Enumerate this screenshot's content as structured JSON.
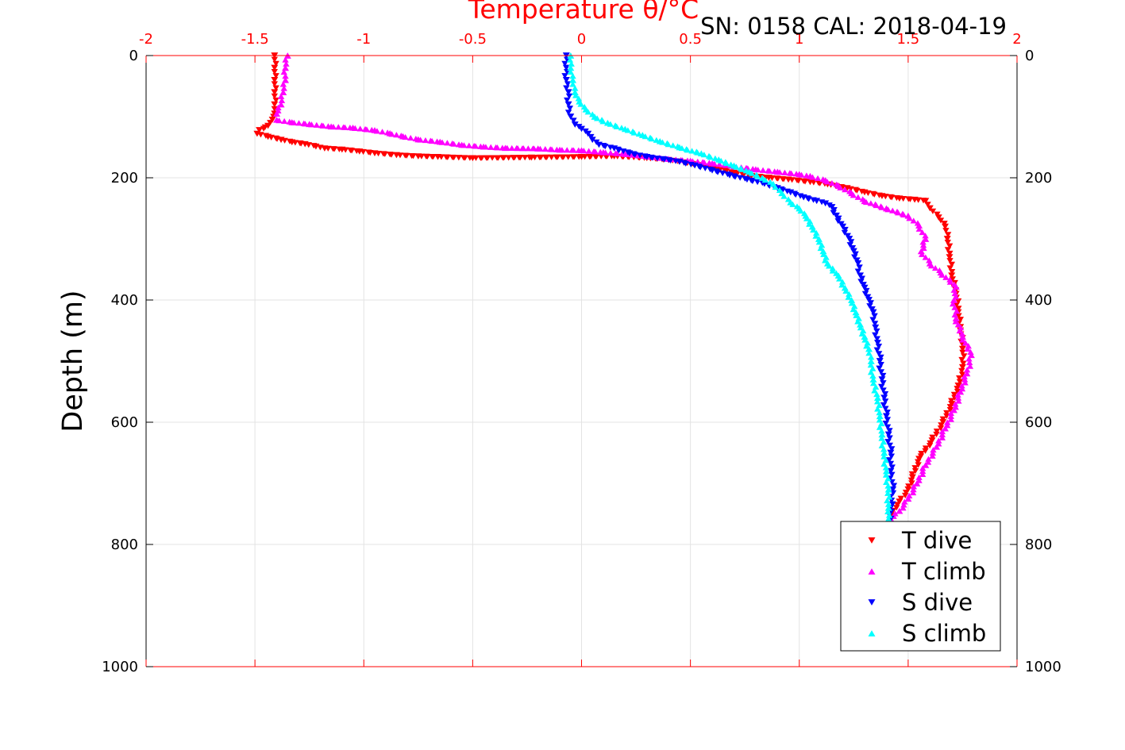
{
  "chart_data": {
    "type": "scatter",
    "title": "Temperature θ/°C",
    "annotation": "SN: 0158  CAL: 2018-04-19",
    "ylabel": "Depth (m)",
    "xlim": [
      -2,
      2
    ],
    "ylim": [
      0,
      1000
    ],
    "y_reversed": true,
    "grid": true,
    "x_ticks": [
      -2,
      -1.5,
      -1,
      -0.5,
      0,
      0.5,
      1,
      1.5,
      2
    ],
    "x_tick_labels": [
      "-2",
      "-1.5",
      "-1",
      "-0.5",
      "0",
      "0.5",
      "1",
      "1.5",
      "2"
    ],
    "y_ticks": [
      0,
      200,
      400,
      600,
      800,
      1000
    ],
    "y_tick_labels": [
      "0",
      "200",
      "400",
      "600",
      "800",
      "1000"
    ],
    "legend_position": "bottom-right",
    "colors": {
      "axis_top": "#ff0000",
      "axis_side": "#000000",
      "grid": "#e3e3e3"
    },
    "series": [
      {
        "name": "T dive",
        "color": "#ff0000",
        "marker": "triangle-down",
        "points": [
          [
            -1.41,
            0
          ],
          [
            -1.41,
            20
          ],
          [
            -1.41,
            40
          ],
          [
            -1.41,
            60
          ],
          [
            -1.41,
            80
          ],
          [
            -1.41,
            95
          ],
          [
            -1.42,
            105
          ],
          [
            -1.44,
            115
          ],
          [
            -1.48,
            122
          ],
          [
            -1.49,
            128
          ],
          [
            -1.44,
            133
          ],
          [
            -1.38,
            138
          ],
          [
            -1.33,
            142
          ],
          [
            -1.27,
            145
          ],
          [
            -1.22,
            149
          ],
          [
            -1.18,
            152
          ],
          [
            -1.1,
            154
          ],
          [
            -1.02,
            157
          ],
          [
            -0.95,
            160
          ],
          [
            -0.85,
            163
          ],
          [
            -0.75,
            165
          ],
          [
            -0.66,
            166
          ],
          [
            -0.5,
            168
          ],
          [
            -0.23,
            167
          ],
          [
            0.0,
            166
          ],
          [
            0.15,
            165
          ],
          [
            0.3,
            168
          ],
          [
            0.4,
            171
          ],
          [
            0.47,
            175
          ],
          [
            0.55,
            180
          ],
          [
            0.62,
            186
          ],
          [
            0.7,
            192
          ],
          [
            0.78,
            197
          ],
          [
            0.86,
            200
          ],
          [
            0.95,
            203
          ],
          [
            1.05,
            207
          ],
          [
            1.13,
            211
          ],
          [
            1.22,
            217
          ],
          [
            1.3,
            224
          ],
          [
            1.38,
            230
          ],
          [
            1.46,
            234
          ],
          [
            1.53,
            236
          ],
          [
            1.58,
            238
          ],
          [
            1.6,
            250
          ],
          [
            1.64,
            265
          ],
          [
            1.67,
            280
          ],
          [
            1.68,
            300
          ],
          [
            1.69,
            330
          ],
          [
            1.7,
            360
          ],
          [
            1.72,
            390
          ],
          [
            1.73,
            420
          ],
          [
            1.74,
            450
          ],
          [
            1.75,
            480
          ],
          [
            1.75,
            510
          ],
          [
            1.73,
            540
          ],
          [
            1.7,
            570
          ],
          [
            1.66,
            600
          ],
          [
            1.61,
            630
          ],
          [
            1.55,
            660
          ],
          [
            1.52,
            690
          ],
          [
            1.5,
            710
          ],
          [
            1.46,
            730
          ],
          [
            1.43,
            745
          ],
          [
            1.42,
            760
          ]
        ]
      },
      {
        "name": "T climb",
        "color": "#ff00ff",
        "marker": "triangle-up",
        "points": [
          [
            -1.35,
            0
          ],
          [
            -1.36,
            20
          ],
          [
            -1.36,
            40
          ],
          [
            -1.37,
            60
          ],
          [
            -1.38,
            80
          ],
          [
            -1.4,
            95
          ],
          [
            -1.4,
            105
          ],
          [
            -1.33,
            109
          ],
          [
            -1.25,
            112
          ],
          [
            -1.15,
            116
          ],
          [
            -1.05,
            118
          ],
          [
            -0.95,
            122
          ],
          [
            -0.88,
            127
          ],
          [
            -0.82,
            132
          ],
          [
            -0.75,
            137
          ],
          [
            -0.65,
            141
          ],
          [
            -0.55,
            146
          ],
          [
            -0.45,
            149
          ],
          [
            -0.35,
            151
          ],
          [
            -0.2,
            152
          ],
          [
            -0.1,
            154
          ],
          [
            0.0,
            155
          ],
          [
            0.1,
            158
          ],
          [
            0.2,
            161
          ],
          [
            0.3,
            165
          ],
          [
            0.4,
            169
          ],
          [
            0.5,
            172
          ],
          [
            0.6,
            176
          ],
          [
            0.7,
            181
          ],
          [
            0.8,
            186
          ],
          [
            0.9,
            190
          ],
          [
            1.0,
            194
          ],
          [
            1.05,
            197
          ],
          [
            1.12,
            204
          ],
          [
            1.18,
            213
          ],
          [
            1.24,
            225
          ],
          [
            1.3,
            238
          ],
          [
            1.4,
            250
          ],
          [
            1.5,
            262
          ],
          [
            1.55,
            278
          ],
          [
            1.58,
            300
          ],
          [
            1.56,
            320
          ],
          [
            1.6,
            340
          ],
          [
            1.65,
            355
          ],
          [
            1.72,
            378
          ],
          [
            1.71,
            400
          ],
          [
            1.72,
            430
          ],
          [
            1.75,
            460
          ],
          [
            1.79,
            490
          ],
          [
            1.77,
            520
          ],
          [
            1.74,
            550
          ],
          [
            1.71,
            580
          ],
          [
            1.67,
            610
          ],
          [
            1.63,
            640
          ],
          [
            1.58,
            670
          ],
          [
            1.54,
            700
          ],
          [
            1.5,
            725
          ],
          [
            1.46,
            745
          ],
          [
            1.42,
            758
          ]
        ]
      },
      {
        "name": "S dive",
        "color": "#0000ff",
        "marker": "triangle-down",
        "points": [
          [
            -0.07,
            0
          ],
          [
            -0.07,
            20
          ],
          [
            -0.07,
            40
          ],
          [
            -0.06,
            60
          ],
          [
            -0.06,
            80
          ],
          [
            -0.05,
            100
          ],
          [
            -0.03,
            113
          ],
          [
            0.0,
            120
          ],
          [
            0.03,
            128
          ],
          [
            0.05,
            138
          ],
          [
            0.08,
            146
          ],
          [
            0.15,
            152
          ],
          [
            0.22,
            160
          ],
          [
            0.3,
            166
          ],
          [
            0.38,
            170
          ],
          [
            0.45,
            174
          ],
          [
            0.52,
            180
          ],
          [
            0.6,
            188
          ],
          [
            0.68,
            196
          ],
          [
            0.76,
            203
          ],
          [
            0.84,
            210
          ],
          [
            0.9,
            217
          ],
          [
            0.96,
            224
          ],
          [
            1.02,
            232
          ],
          [
            1.08,
            238
          ],
          [
            1.12,
            242
          ],
          [
            1.15,
            248
          ],
          [
            1.17,
            262
          ],
          [
            1.2,
            280
          ],
          [
            1.23,
            300
          ],
          [
            1.25,
            320
          ],
          [
            1.27,
            340
          ],
          [
            1.28,
            360
          ],
          [
            1.3,
            380
          ],
          [
            1.32,
            400
          ],
          [
            1.34,
            420
          ],
          [
            1.35,
            445
          ],
          [
            1.36,
            470
          ],
          [
            1.37,
            500
          ],
          [
            1.38,
            530
          ],
          [
            1.39,
            560
          ],
          [
            1.4,
            590
          ],
          [
            1.41,
            620
          ],
          [
            1.42,
            650
          ],
          [
            1.42,
            680
          ],
          [
            1.43,
            710
          ],
          [
            1.42,
            740
          ],
          [
            1.42,
            758
          ]
        ]
      },
      {
        "name": "S climb",
        "color": "#00ffff",
        "marker": "triangle-up",
        "points": [
          [
            -0.05,
            0
          ],
          [
            -0.05,
            20
          ],
          [
            -0.04,
            40
          ],
          [
            -0.03,
            60
          ],
          [
            -0.01,
            75
          ],
          [
            0.02,
            88
          ],
          [
            0.06,
            100
          ],
          [
            0.12,
            110
          ],
          [
            0.2,
            120
          ],
          [
            0.28,
            130
          ],
          [
            0.36,
            140
          ],
          [
            0.45,
            150
          ],
          [
            0.55,
            160
          ],
          [
            0.63,
            170
          ],
          [
            0.7,
            180
          ],
          [
            0.77,
            190
          ],
          [
            0.83,
            200
          ],
          [
            0.88,
            210
          ],
          [
            0.92,
            225
          ],
          [
            0.96,
            240
          ],
          [
            1.0,
            250
          ],
          [
            1.03,
            262
          ],
          [
            1.06,
            280
          ],
          [
            1.09,
            300
          ],
          [
            1.11,
            320
          ],
          [
            1.13,
            340
          ],
          [
            1.18,
            360
          ],
          [
            1.21,
            380
          ],
          [
            1.24,
            400
          ],
          [
            1.26,
            420
          ],
          [
            1.28,
            440
          ],
          [
            1.3,
            460
          ],
          [
            1.32,
            480
          ],
          [
            1.33,
            500
          ],
          [
            1.34,
            530
          ],
          [
            1.36,
            560
          ],
          [
            1.37,
            590
          ],
          [
            1.38,
            620
          ],
          [
            1.39,
            650
          ],
          [
            1.4,
            680
          ],
          [
            1.41,
            710
          ],
          [
            1.41,
            740
          ],
          [
            1.41,
            758
          ]
        ]
      }
    ]
  }
}
